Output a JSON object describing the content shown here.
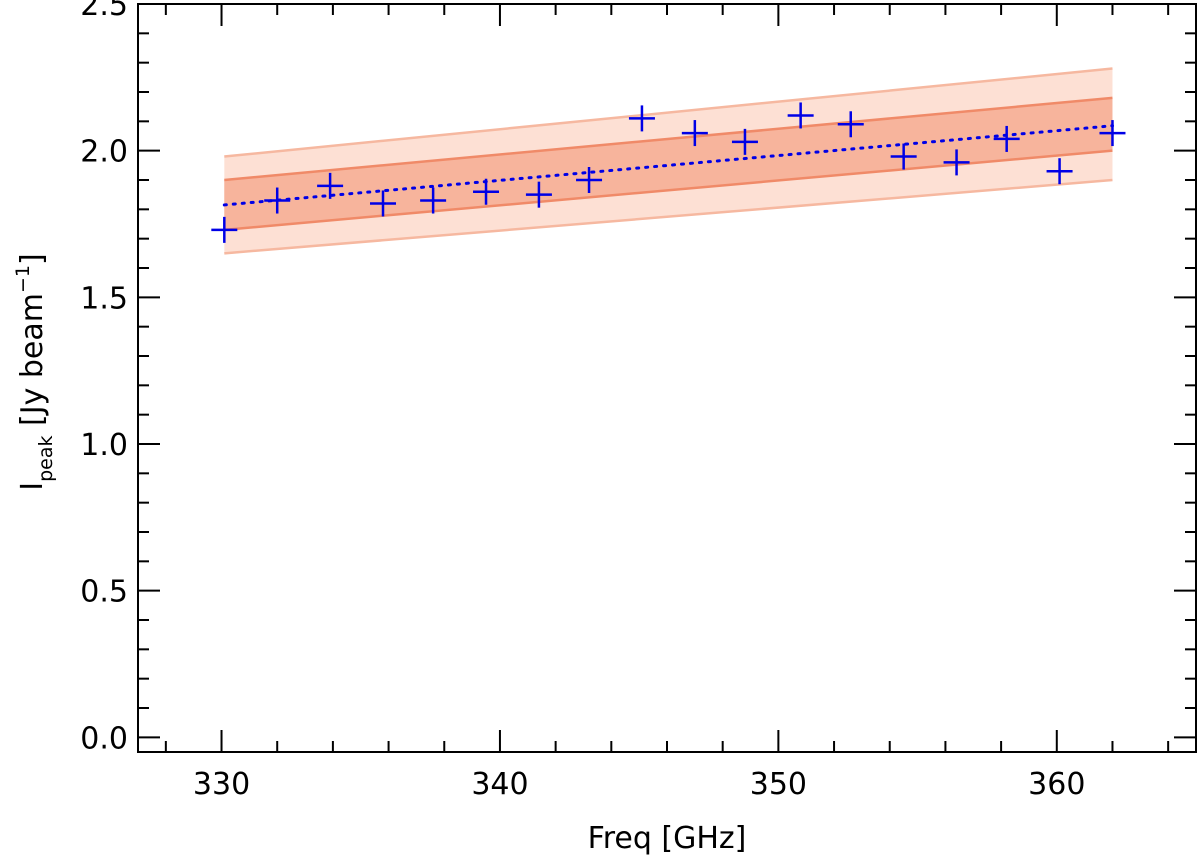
{
  "chart_data": {
    "type": "scatter",
    "xlabel": "Freq [GHz]",
    "ylabel": {
      "main": "I",
      "subscript": "peak",
      "unit_open": " [Jy beam",
      "unit_superscript": "−1",
      "unit_close": "]"
    },
    "xlim": [
      327,
      365
    ],
    "ylim": [
      -0.05,
      2.5
    ],
    "xticks": [
      330,
      340,
      350,
      360
    ],
    "xtick_labels": [
      "330",
      "340",
      "350",
      "360"
    ],
    "yticks": [
      0.0,
      0.5,
      1.0,
      1.5,
      2.0,
      2.5
    ],
    "ytick_labels": [
      "0.0",
      "0.5",
      "1.0",
      "1.5",
      "2.0",
      "2.5"
    ],
    "x_minor_step": 2,
    "y_minor_step": 0.1,
    "grid": false,
    "colors": {
      "points": "#0000e6",
      "fit_line": "#0000e6",
      "inner_band": "#f7b49c",
      "outer_band": "#fde0d4",
      "band_edge": "#f08a68",
      "outer_edge": "#f6b8a0"
    },
    "series": [
      {
        "kind": "points",
        "marker": "plus",
        "x": [
          330.1,
          332.0,
          333.9,
          335.8,
          337.6,
          339.5,
          341.4,
          343.2,
          345.1,
          347.0,
          348.8,
          350.8,
          352.6,
          354.5,
          356.4,
          358.2,
          360.1,
          362.0
        ],
        "y": [
          1.73,
          1.83,
          1.88,
          1.82,
          1.83,
          1.86,
          1.85,
          1.9,
          2.11,
          2.06,
          2.03,
          2.12,
          2.09,
          1.98,
          1.96,
          2.04,
          1.93,
          2.06
        ]
      },
      {
        "kind": "line",
        "style": "dotted",
        "x": [
          330.1,
          362.0
        ],
        "y": [
          1.815,
          2.085
        ]
      },
      {
        "kind": "band",
        "level": "inner",
        "x": [
          330.1,
          362.0
        ],
        "lower": [
          1.73,
          2.0
        ],
        "upper": [
          1.9,
          2.18
        ]
      },
      {
        "kind": "band",
        "level": "outer",
        "x": [
          330.1,
          362.0
        ],
        "lower": [
          1.65,
          1.9
        ],
        "upper": [
          1.98,
          2.28
        ]
      }
    ]
  }
}
